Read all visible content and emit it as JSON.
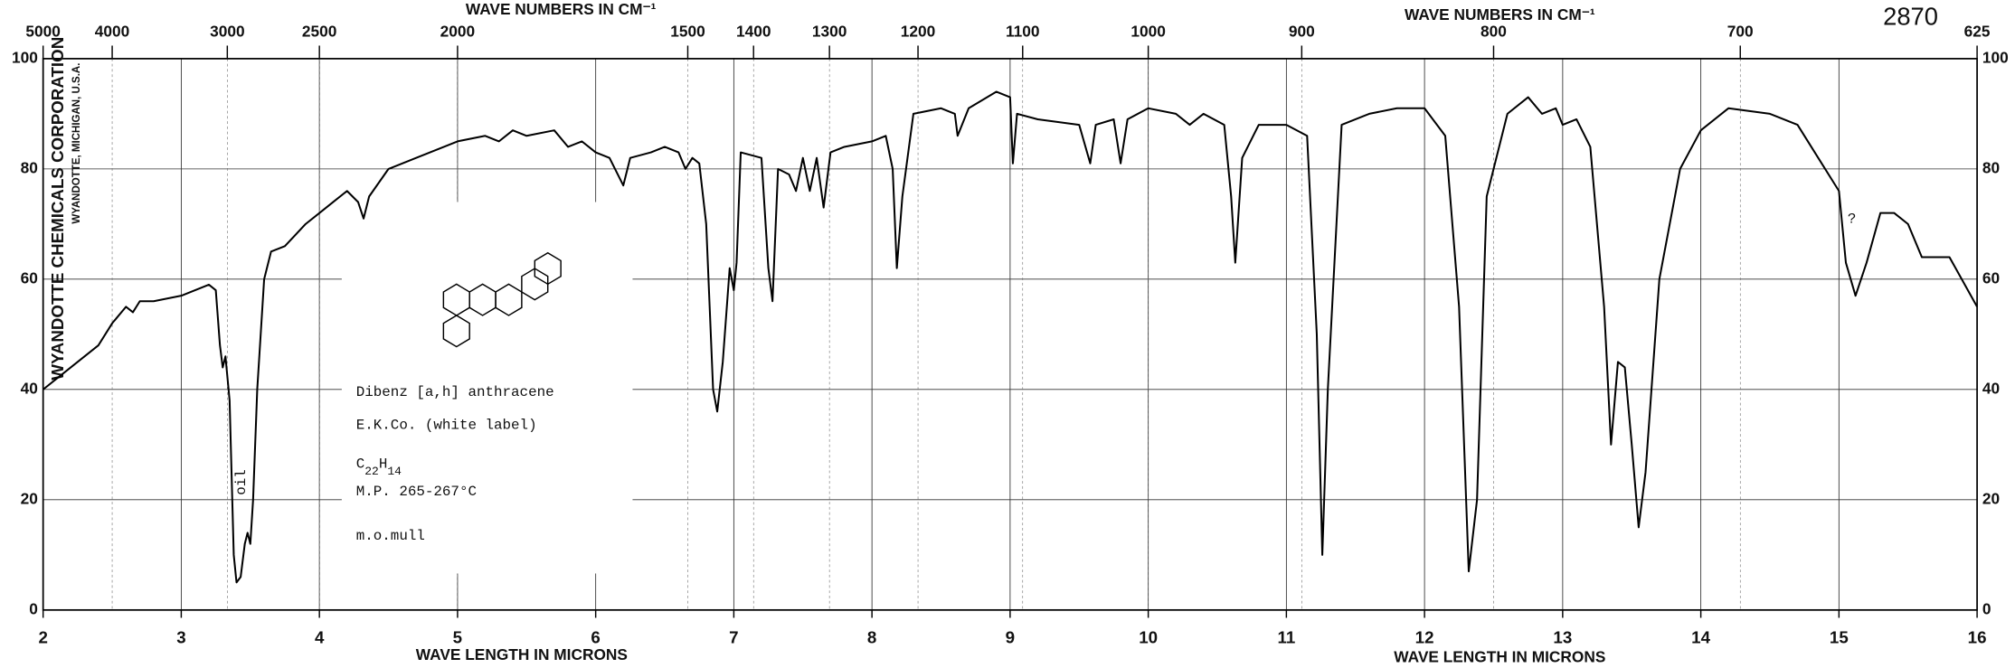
{
  "chart_data": {
    "type": "line",
    "x_label": "WAVE LENGTH IN MICRONS",
    "x2_label": "WAVE NUMBERS IN CM⁻¹",
    "chart_number": "2870",
    "maker": [
      "WYANDOTTE CHEMICALS CORPORATION",
      "WYANDOTTE, MICHIGAN, U.S.A."
    ],
    "sample": {
      "name": "Dibenz [a,h] anthracene",
      "source": "E.K.Co. (white label)",
      "formula": [
        "C",
        "22",
        "H",
        "14"
      ],
      "melting_point": "M.P. 265-267°C",
      "phase": "m.o.mull"
    },
    "annotations": [
      "oil",
      "?"
    ],
    "color": "#000000",
    "xlim": [
      2,
      16
    ],
    "ylim": [
      0,
      100
    ],
    "xticks": [
      2,
      3,
      4,
      5,
      6,
      7,
      8,
      9,
      10,
      11,
      12,
      13,
      14,
      15,
      16
    ],
    "yticks": [
      0,
      20,
      40,
      60,
      80,
      100
    ],
    "x2ticks": [
      5000,
      4000,
      3000,
      2500,
      2000,
      1500,
      1400,
      1300,
      1200,
      1100,
      1000,
      900,
      800,
      700,
      625
    ],
    "grid": true,
    "x": [
      2.0,
      2.2,
      2.4,
      2.5,
      2.6,
      2.65,
      2.7,
      2.8,
      3.0,
      3.1,
      3.2,
      3.25,
      3.28,
      3.3,
      3.32,
      3.35,
      3.38,
      3.4,
      3.43,
      3.46,
      3.48,
      3.5,
      3.52,
      3.55,
      3.6,
      3.65,
      3.75,
      3.9,
      4.0,
      4.1,
      4.2,
      4.28,
      4.32,
      4.36,
      4.5,
      4.7,
      5.0,
      5.2,
      5.3,
      5.4,
      5.5,
      5.7,
      5.8,
      5.9,
      6.0,
      6.1,
      6.2,
      6.25,
      6.4,
      6.5,
      6.6,
      6.65,
      6.7,
      6.75,
      6.8,
      6.85,
      6.88,
      6.92,
      6.97,
      7.0,
      7.02,
      7.05,
      7.2,
      7.25,
      7.28,
      7.32,
      7.4,
      7.45,
      7.5,
      7.55,
      7.6,
      7.65,
      7.7,
      7.8,
      8.0,
      8.1,
      8.15,
      8.18,
      8.22,
      8.3,
      8.5,
      8.6,
      8.62,
      8.7,
      8.9,
      9.0,
      9.02,
      9.05,
      9.2,
      9.5,
      9.58,
      9.62,
      9.75,
      9.8,
      9.85,
      10.0,
      10.2,
      10.3,
      10.4,
      10.55,
      10.6,
      10.63,
      10.68,
      10.8,
      11.0,
      11.15,
      11.22,
      11.26,
      11.3,
      11.4,
      11.6,
      11.8,
      12.0,
      12.15,
      12.25,
      12.32,
      12.38,
      12.45,
      12.6,
      12.75,
      12.85,
      12.95,
      13.0,
      13.1,
      13.2,
      13.3,
      13.35,
      13.4,
      13.45,
      13.5,
      13.55,
      13.6,
      13.7,
      13.85,
      14.0,
      14.2,
      14.5,
      14.7,
      14.85,
      15.0,
      15.05,
      15.12,
      15.2,
      15.3,
      15.4,
      15.5,
      15.6,
      15.8,
      16.0
    ],
    "values": [
      40,
      44,
      48,
      52,
      55,
      54,
      56,
      56,
      57,
      58,
      59,
      58,
      48,
      44,
      46,
      38,
      10,
      5,
      6,
      12,
      14,
      12,
      20,
      40,
      60,
      65,
      66,
      70,
      72,
      74,
      76,
      74,
      71,
      75,
      80,
      82,
      85,
      86,
      85,
      87,
      86,
      87,
      84,
      85,
      83,
      82,
      77,
      82,
      83,
      84,
      83,
      80,
      82,
      81,
      70,
      40,
      36,
      45,
      62,
      58,
      63,
      83,
      82,
      62,
      56,
      80,
      79,
      76,
      82,
      76,
      82,
      73,
      83,
      84,
      85,
      86,
      80,
      62,
      75,
      90,
      91,
      90,
      86,
      91,
      94,
      93,
      81,
      90,
      89,
      88,
      81,
      88,
      89,
      81,
      89,
      91,
      90,
      88,
      90,
      88,
      75,
      63,
      82,
      88,
      88,
      86,
      50,
      10,
      40,
      88,
      90,
      91,
      91,
      86,
      55,
      7,
      20,
      75,
      90,
      93,
      90,
      91,
      88,
      89,
      84,
      55,
      30,
      45,
      44,
      30,
      15,
      25,
      60,
      80,
      87,
      91,
      90,
      88,
      82,
      76,
      63,
      57,
      63,
      72,
      72,
      70,
      64,
      64,
      55
    ]
  }
}
